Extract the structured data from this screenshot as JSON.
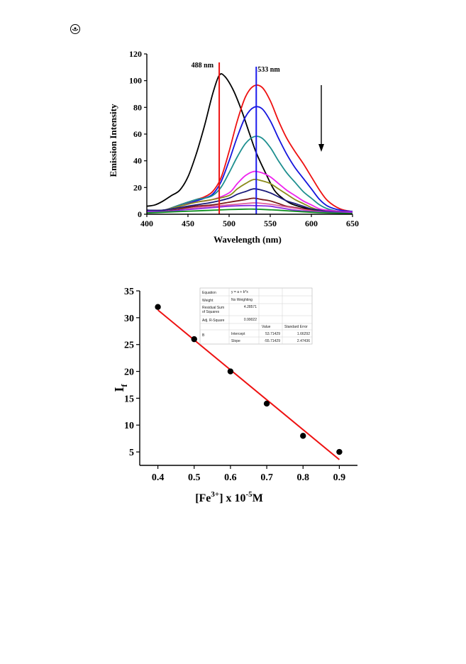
{
  "chart_data": [
    {
      "type": "line",
      "xlabel": "Wavelength (nm)",
      "ylabel": "Emission Intensity",
      "xlim": [
        400,
        650
      ],
      "ylim": [
        0,
        120
      ],
      "xticks": [
        400,
        450,
        500,
        550,
        600,
        650
      ],
      "yticks": [
        0,
        20,
        40,
        60,
        80,
        100,
        120
      ],
      "grid": false,
      "annotations": [
        {
          "text": "488 nm",
          "x": 488
        },
        {
          "text": "533 nm",
          "x": 533
        }
      ],
      "arrow": "downward arrow near x≈612",
      "reference_lines": [
        {
          "x": 488,
          "color": "#ee1111"
        },
        {
          "x": 533,
          "color": "#1a1aee"
        }
      ],
      "series": [
        {
          "color": "#000000",
          "x": [
            400,
            410,
            420,
            430,
            440,
            450,
            460,
            470,
            480,
            488,
            495,
            505,
            515,
            525,
            533,
            545,
            555,
            565,
            575,
            590,
            605,
            620,
            635,
            650
          ],
          "values": [
            6,
            7,
            10,
            14,
            18,
            28,
            45,
            66,
            90,
            104,
            103,
            93,
            78,
            60,
            46,
            30,
            18,
            12,
            8,
            5,
            3,
            2,
            1.5,
            1
          ]
        },
        {
          "color": "#ee1111",
          "x": [
            400,
            420,
            440,
            460,
            470,
            480,
            490,
            500,
            510,
            520,
            530,
            540,
            550,
            560,
            570,
            580,
            590,
            600,
            610,
            620,
            635,
            650
          ],
          "values": [
            3,
            3,
            7,
            11,
            13,
            17,
            27,
            47,
            70,
            88,
            96,
            95,
            85,
            70,
            57,
            47,
            38,
            28,
            18,
            10,
            4,
            2
          ]
        },
        {
          "color": "#1515dd",
          "x": [
            400,
            420,
            440,
            460,
            470,
            480,
            490,
            500,
            510,
            520,
            530,
            540,
            550,
            560,
            570,
            580,
            590,
            600,
            610,
            620,
            635,
            650
          ],
          "values": [
            3,
            3,
            6,
            10,
            12,
            15,
            24,
            40,
            58,
            73,
            80,
            79,
            70,
            57,
            45,
            35,
            27,
            19,
            11,
            6,
            3,
            2
          ]
        },
        {
          "color": "#1e8f8f",
          "x": [
            400,
            420,
            440,
            460,
            470,
            480,
            490,
            500,
            510,
            520,
            530,
            540,
            550,
            560,
            570,
            580,
            590,
            600,
            610,
            620,
            635,
            650
          ],
          "values": [
            3,
            3,
            7,
            11,
            12,
            14,
            20,
            31,
            43,
            53,
            58,
            57,
            50,
            40,
            31,
            24,
            17,
            12,
            7,
            4,
            2,
            1.5
          ]
        },
        {
          "color": "#ee22ee",
          "x": [
            400,
            420,
            440,
            460,
            480,
            500,
            510,
            520,
            530,
            540,
            550,
            560,
            570,
            580,
            590,
            600,
            610,
            620,
            635,
            650
          ],
          "values": [
            3,
            3,
            6,
            9,
            11,
            16,
            23,
            29,
            32,
            31,
            28,
            23,
            18,
            14,
            10,
            7,
            4,
            3,
            2,
            1.5
          ]
        },
        {
          "color": "#8b8b1a",
          "x": [
            400,
            420,
            440,
            460,
            480,
            500,
            510,
            520,
            530,
            540,
            550,
            560,
            570,
            580,
            590,
            600,
            610,
            620,
            635,
            650
          ],
          "values": [
            3,
            3,
            6,
            9,
            11,
            14,
            19,
            23,
            26,
            25,
            23,
            19,
            15,
            11,
            8,
            5,
            3,
            2,
            1.5,
            1
          ]
        },
        {
          "color": "#1b1b7a",
          "x": [
            400,
            420,
            440,
            460,
            480,
            500,
            510,
            520,
            530,
            540,
            550,
            560,
            570,
            580,
            590,
            600,
            610,
            620,
            635,
            650
          ],
          "values": [
            3,
            3,
            5,
            7,
            9,
            12,
            15,
            17,
            19,
            18,
            16,
            13,
            10,
            8,
            6,
            4,
            3,
            2,
            1.5,
            1
          ]
        },
        {
          "color": "#7a1a1a",
          "x": [
            400,
            420,
            440,
            460,
            480,
            500,
            510,
            520,
            530,
            540,
            550,
            560,
            570,
            580,
            590,
            600,
            610,
            620,
            635,
            650
          ],
          "values": [
            2,
            2,
            4,
            6,
            7,
            9,
            10,
            11,
            12,
            11,
            10,
            8,
            6,
            5,
            4,
            3,
            2,
            1.5,
            1,
            1
          ]
        },
        {
          "color": "#e0609a",
          "x": [
            400,
            420,
            440,
            460,
            480,
            500,
            520,
            530,
            540,
            550,
            560,
            570,
            580,
            590,
            600,
            610,
            620,
            635,
            650
          ],
          "values": [
            2,
            2,
            3,
            5,
            6,
            7,
            8,
            8.5,
            8.2,
            7.5,
            6.5,
            5.5,
            4.5,
            3.5,
            2.5,
            2,
            1.5,
            1,
            1
          ]
        },
        {
          "color": "#8a2be2",
          "x": [
            400,
            420,
            440,
            460,
            480,
            500,
            520,
            530,
            540,
            550,
            560,
            570,
            580,
            600,
            620,
            650
          ],
          "values": [
            2,
            2,
            3,
            4,
            5,
            6,
            6.5,
            6.5,
            6.3,
            6,
            5,
            4,
            3,
            2,
            1.5,
            1
          ]
        },
        {
          "color": "#0f8f1f",
          "x": [
            400,
            420,
            440,
            460,
            480,
            500,
            520,
            530,
            540,
            560,
            580,
            600,
            620,
            650
          ],
          "values": [
            1,
            1.5,
            2,
            2.5,
            3,
            3.5,
            3.8,
            3.8,
            3.6,
            3,
            2.2,
            1.5,
            1,
            0.5
          ]
        }
      ]
    },
    {
      "type": "scatter",
      "xlabel_main": "[Fe",
      "xlabel_sup": "3+",
      "xlabel_mid": "] x 10",
      "xlabel_sup2": "-5",
      "xlabel_end": "M",
      "ylabel_main": "I",
      "ylabel_sub": "f",
      "xlim": [
        0.35,
        0.95
      ],
      "ylim": [
        2.5,
        35
      ],
      "xticks": [
        0.4,
        0.5,
        0.6,
        0.7,
        0.8,
        0.9
      ],
      "xtick_labels": [
        "0.4",
        "0.5",
        "0.6",
        "0.7",
        "0.8",
        "0.9"
      ],
      "yticks": [
        5,
        10,
        15,
        20,
        25,
        30,
        35
      ],
      "grid": false,
      "points": {
        "x": [
          0.4,
          0.5,
          0.6,
          0.7,
          0.8,
          0.9
        ],
        "y": [
          32,
          26,
          20,
          14,
          8,
          5
        ]
      },
      "fit": {
        "intercept": 53.71429,
        "slope": -55.71429,
        "x_range": [
          0.4,
          0.9
        ],
        "color": "#ee1111"
      },
      "fit_table": {
        "equation_label": "Equation",
        "equation_value": "y = a + b*x",
        "weight_label": "Weight",
        "weight_value": "No Weighting",
        "rss_label_1": "Residual Sum",
        "rss_label_2": "of Squares",
        "rss_value": "4.28571",
        "adjr_label": "Adj. R-Square",
        "adjr_value": "0.99022",
        "col_value": "Value",
        "col_error": "Standard Error",
        "row_group": "B",
        "intercept_label": "Intercept",
        "intercept_value": "53.71429",
        "intercept_error": "1.66292",
        "slope_label": "Slope",
        "slope_value": "-55.71429",
        "slope_error": "2.47436"
      }
    }
  ]
}
